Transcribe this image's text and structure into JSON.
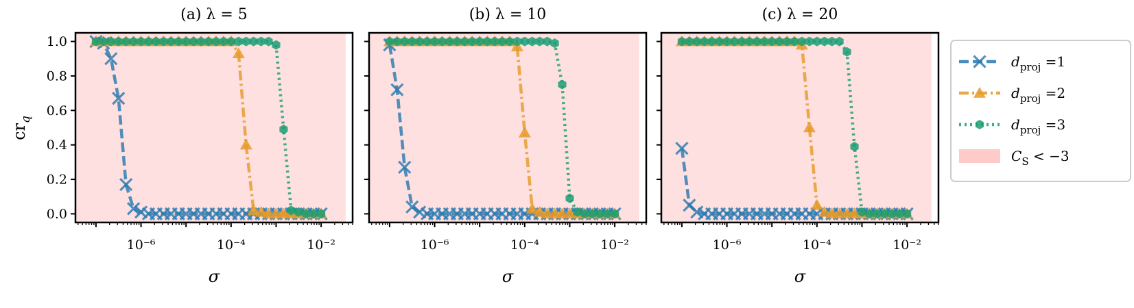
{
  "chart_data": [
    {
      "type": "line",
      "title": "(a) λ = 5",
      "xlabel": "σ",
      "ylabel": "cr_q",
      "xscale": "log",
      "xlim": [
        3.5e-08,
        0.05
      ],
      "ylim": [
        -0.05,
        1.05
      ],
      "yticks": [
        "0.0",
        "0.2",
        "0.4",
        "0.6",
        "0.8",
        "1.0"
      ],
      "xticks": [
        "10⁻⁶",
        "10⁻⁴",
        "10⁻²"
      ],
      "shaded_region": {
        "label": "C_S < −3",
        "x": [
          3.5e-08,
          0.035
        ]
      },
      "series": [
        {
          "name": "d_proj = 1",
          "color": "#2a7ab0",
          "marker": "x",
          "linestyle": "dashed",
          "x": [
            1e-07,
            1.468e-07,
            2.154e-07,
            3.162e-07,
            4.642e-07,
            6.813e-07,
            1e-06,
            1.468e-06,
            2.154e-06,
            3.162e-06,
            4.642e-06,
            6.813e-06,
            1e-05,
            1.468e-05,
            2.154e-05,
            3.162e-05,
            4.642e-05,
            6.813e-05,
            0.0001,
            0.0001468,
            0.0002154,
            0.0003162,
            0.0004642,
            0.0006813,
            0.001,
            0.001468,
            0.002154,
            0.003162,
            0.004642,
            0.006813,
            0.01
          ],
          "y": [
            1.0,
            0.99,
            0.9,
            0.67,
            0.17,
            0.03,
            0.01,
            0,
            0,
            0,
            0,
            0,
            0,
            0,
            0,
            0,
            0,
            0,
            0,
            0,
            0,
            0,
            0,
            0,
            0,
            0,
            0,
            0,
            0,
            0,
            0
          ]
        },
        {
          "name": "d_proj = 2",
          "color": "#e69a28",
          "marker": "^",
          "linestyle": "dashdot",
          "x": [
            1e-07,
            1.468e-07,
            2.154e-07,
            3.162e-07,
            4.642e-07,
            6.813e-07,
            1e-06,
            1.468e-06,
            2.154e-06,
            3.162e-06,
            4.642e-06,
            6.813e-06,
            1e-05,
            1.468e-05,
            2.154e-05,
            3.162e-05,
            4.642e-05,
            6.813e-05,
            0.0001,
            0.0001468,
            0.0002154,
            0.0003162,
            0.0004642,
            0.0006813,
            0.001,
            0.001468,
            0.002154,
            0.003162,
            0.004642,
            0.006813,
            0.01
          ],
          "y": [
            1,
            1,
            1,
            1,
            1,
            1,
            1,
            1,
            1,
            1,
            1,
            1,
            1,
            1,
            1,
            1,
            1,
            1,
            1,
            0.93,
            0.4,
            0.02,
            0.01,
            0,
            0,
            0,
            0,
            0,
            0,
            0,
            0
          ]
        },
        {
          "name": "d_proj = 3",
          "color": "#1a9e74",
          "marker": "h",
          "linestyle": "dotted",
          "x": [
            1e-07,
            1.468e-07,
            2.154e-07,
            3.162e-07,
            4.642e-07,
            6.813e-07,
            1e-06,
            1.468e-06,
            2.154e-06,
            3.162e-06,
            4.642e-06,
            6.813e-06,
            1e-05,
            1.468e-05,
            2.154e-05,
            3.162e-05,
            4.642e-05,
            6.813e-05,
            0.0001,
            0.0001468,
            0.0002154,
            0.0003162,
            0.0004642,
            0.0006813,
            0.001,
            0.001468,
            0.002154,
            0.003162,
            0.004642,
            0.006813,
            0.01
          ],
          "y": [
            1,
            1,
            1,
            1,
            1,
            1,
            1,
            1,
            1,
            1,
            1,
            1,
            1,
            1,
            1,
            1,
            1,
            1,
            1,
            1,
            1,
            1,
            1,
            1,
            0.98,
            0.49,
            0.02,
            0.01,
            0,
            0,
            0
          ]
        }
      ]
    },
    {
      "type": "line",
      "title": "(b) λ = 10",
      "xlabel": "σ",
      "ylabel": "",
      "xscale": "log",
      "xlim": [
        3.5e-08,
        0.05
      ],
      "ylim": [
        -0.05,
        1.05
      ],
      "xticks": [
        "10⁻⁶",
        "10⁻⁴",
        "10⁻²"
      ],
      "shaded_region": {
        "label": "C_S < −3",
        "x": [
          3.5e-08,
          0.035
        ]
      },
      "series": [
        {
          "name": "d_proj = 1",
          "color": "#2a7ab0",
          "marker": "x",
          "linestyle": "dashed",
          "x": [
            1e-07,
            1.468e-07,
            2.154e-07,
            3.162e-07,
            4.642e-07,
            6.813e-07,
            1e-06,
            1.468e-06,
            2.154e-06,
            3.162e-06,
            4.642e-06,
            6.813e-06,
            1e-05,
            1.468e-05,
            2.154e-05,
            3.162e-05,
            4.642e-05,
            6.813e-05,
            0.0001,
            0.0001468,
            0.0002154,
            0.0003162,
            0.0004642,
            0.0006813,
            0.001,
            0.001468,
            0.002154,
            0.003162,
            0.004642,
            0.006813,
            0.01
          ],
          "y": [
            0.98,
            0.72,
            0.27,
            0.04,
            0.01,
            0,
            0,
            0,
            0,
            0,
            0,
            0,
            0,
            0,
            0,
            0,
            0,
            0,
            0,
            0,
            0,
            0,
            0,
            0,
            0,
            0,
            0,
            0,
            0,
            0,
            0
          ]
        },
        {
          "name": "d_proj = 2",
          "color": "#e69a28",
          "marker": "^",
          "linestyle": "dashdot",
          "x": [
            1e-07,
            1.468e-07,
            2.154e-07,
            3.162e-07,
            4.642e-07,
            6.813e-07,
            1e-06,
            1.468e-06,
            2.154e-06,
            3.162e-06,
            4.642e-06,
            6.813e-06,
            1e-05,
            1.468e-05,
            2.154e-05,
            3.162e-05,
            4.642e-05,
            6.813e-05,
            0.0001,
            0.0001468,
            0.0002154,
            0.0003162,
            0.0004642,
            0.0006813,
            0.001,
            0.001468,
            0.002154,
            0.003162,
            0.004642,
            0.006813,
            0.01
          ],
          "y": [
            1,
            1,
            1,
            1,
            1,
            1,
            1,
            1,
            1,
            1,
            1,
            1,
            1,
            1,
            1,
            1,
            1,
            0.97,
            0.47,
            0.03,
            0.01,
            0,
            0,
            0,
            0,
            0,
            0,
            0,
            0,
            0,
            0
          ]
        },
        {
          "name": "d_proj = 3",
          "color": "#1a9e74",
          "marker": "h",
          "linestyle": "dotted",
          "x": [
            1e-07,
            1.468e-07,
            2.154e-07,
            3.162e-07,
            4.642e-07,
            6.813e-07,
            1e-06,
            1.468e-06,
            2.154e-06,
            3.162e-06,
            4.642e-06,
            6.813e-06,
            1e-05,
            1.468e-05,
            2.154e-05,
            3.162e-05,
            4.642e-05,
            6.813e-05,
            0.0001,
            0.0001468,
            0.0002154,
            0.0003162,
            0.0004642,
            0.0006813,
            0.001,
            0.001468,
            0.002154,
            0.003162,
            0.004642,
            0.006813,
            0.01
          ],
          "y": [
            1,
            1,
            1,
            1,
            1,
            1,
            1,
            1,
            1,
            1,
            1,
            1,
            1,
            1,
            1,
            1,
            1,
            1,
            1,
            1,
            1,
            1,
            0.99,
            0.75,
            0.09,
            0.01,
            0,
            0,
            0,
            0,
            0
          ]
        }
      ]
    },
    {
      "type": "line",
      "title": "(c) λ = 20",
      "xlabel": "σ",
      "ylabel": "",
      "xscale": "log",
      "xlim": [
        3.5e-08,
        0.05
      ],
      "ylim": [
        -0.05,
        1.05
      ],
      "xticks": [
        "10⁻⁶",
        "10⁻⁴",
        "10⁻²"
      ],
      "shaded_region": {
        "label": "C_S < −3",
        "x": [
          3.5e-08,
          0.035
        ]
      },
      "series": [
        {
          "name": "d_proj = 1",
          "color": "#2a7ab0",
          "marker": "x",
          "linestyle": "dashed",
          "x": [
            1e-07,
            1.468e-07,
            2.154e-07,
            3.162e-07,
            4.642e-07,
            6.813e-07,
            1e-06,
            1.468e-06,
            2.154e-06,
            3.162e-06,
            4.642e-06,
            6.813e-06,
            1e-05,
            1.468e-05,
            2.154e-05,
            3.162e-05,
            4.642e-05,
            6.813e-05,
            0.0001,
            0.0001468,
            0.0002154,
            0.0003162,
            0.0004642,
            0.0006813,
            0.001,
            0.001468,
            0.002154,
            0.003162,
            0.004642,
            0.006813,
            0.01
          ],
          "y": [
            0.38,
            0.05,
            0.01,
            0,
            0,
            0,
            0,
            0,
            0,
            0,
            0,
            0,
            0,
            0,
            0,
            0,
            0,
            0,
            0,
            0,
            0,
            0,
            0,
            0,
            0,
            0,
            0,
            0,
            0,
            0,
            0
          ]
        },
        {
          "name": "d_proj = 2",
          "color": "#e69a28",
          "marker": "^",
          "linestyle": "dashdot",
          "x": [
            1e-07,
            1.468e-07,
            2.154e-07,
            3.162e-07,
            4.642e-07,
            6.813e-07,
            1e-06,
            1.468e-06,
            2.154e-06,
            3.162e-06,
            4.642e-06,
            6.813e-06,
            1e-05,
            1.468e-05,
            2.154e-05,
            3.162e-05,
            4.642e-05,
            6.813e-05,
            0.0001,
            0.0001468,
            0.0002154,
            0.0003162,
            0.0004642,
            0.0006813,
            0.001,
            0.001468,
            0.002154,
            0.003162,
            0.004642,
            0.006813,
            0.01
          ],
          "y": [
            1,
            1,
            1,
            1,
            1,
            1,
            1,
            1,
            1,
            1,
            1,
            1,
            1,
            1,
            1,
            1,
            0.98,
            0.5,
            0.05,
            0.01,
            0,
            0,
            0,
            0,
            0,
            0,
            0,
            0,
            0,
            0,
            0
          ]
        },
        {
          "name": "d_proj = 3",
          "color": "#1a9e74",
          "marker": "h",
          "linestyle": "dotted",
          "x": [
            1e-07,
            1.468e-07,
            2.154e-07,
            3.162e-07,
            4.642e-07,
            6.813e-07,
            1e-06,
            1.468e-06,
            2.154e-06,
            3.162e-06,
            4.642e-06,
            6.813e-06,
            1e-05,
            1.468e-05,
            2.154e-05,
            3.162e-05,
            4.642e-05,
            6.813e-05,
            0.0001,
            0.0001468,
            0.0002154,
            0.0003162,
            0.0004642,
            0.0006813,
            0.001,
            0.001468,
            0.002154,
            0.003162,
            0.004642,
            0.006813,
            0.01
          ],
          "y": [
            1,
            1,
            1,
            1,
            1,
            1,
            1,
            1,
            1,
            1,
            1,
            1,
            1,
            1,
            1,
            1,
            1,
            1,
            1,
            1,
            1,
            1,
            0.94,
            0.39,
            0.01,
            0,
            0,
            0,
            0,
            0,
            0
          ]
        }
      ]
    }
  ],
  "legend": {
    "placement": "right",
    "entries": [
      {
        "prefix": "d",
        "sub": "proj",
        "suffix": " =1",
        "kind": "series",
        "series_index": 0
      },
      {
        "prefix": "d",
        "sub": "proj",
        "suffix": " =2",
        "kind": "series",
        "series_index": 1
      },
      {
        "prefix": "d",
        "sub": "proj",
        "suffix": " =3",
        "kind": "series",
        "series_index": 2
      },
      {
        "prefix": "C",
        "sub": "S",
        "suffix": " < −3",
        "kind": "region",
        "color": "#ffcaca"
      }
    ]
  },
  "ylabel_parts": {
    "main": "cr",
    "sub": "q"
  },
  "shade_color": "#ffe0e0"
}
